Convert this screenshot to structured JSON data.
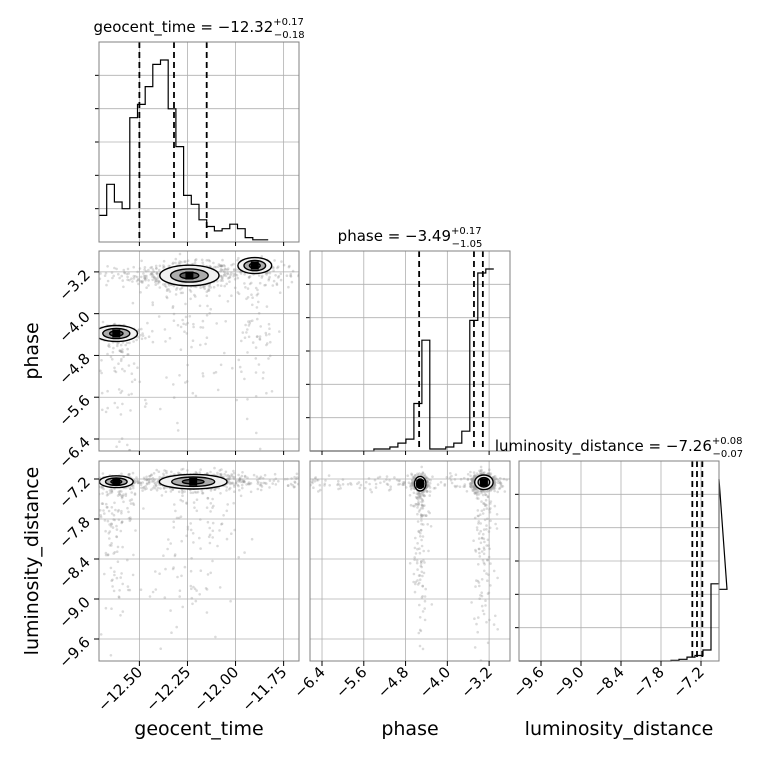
{
  "chart_data": {
    "type": "corner",
    "parameters": [
      "geocent_time",
      "phase",
      "luminosity_distance"
    ],
    "axis_labels": {
      "geocent_time": "geocent_time",
      "phase": "phase",
      "luminosity_distance": "luminosity_distance"
    },
    "titles": [
      {
        "param": "geocent_time",
        "name": "geocent_time",
        "median": "−12.32",
        "plus": "+0.17",
        "minus": "−0.18"
      },
      {
        "param": "phase",
        "name": "phase",
        "median": "−3.49",
        "plus": "+0.17",
        "minus": "−1.05"
      },
      {
        "param": "luminosity_distance",
        "name": "luminosity_distance",
        "median": "−7.26",
        "plus": "+0.08",
        "minus": "−0.07"
      }
    ],
    "ranges": {
      "geocent_time": [
        -12.71,
        -11.67
      ],
      "phase": [
        -6.63,
        -2.8
      ],
      "luminosity_distance": [
        -9.93,
        -6.93
      ]
    },
    "ticks": {
      "geocent_time": {
        "values": [
          -12.5,
          -12.25,
          -12.0,
          -11.75
        ],
        "labels": [
          "−12.50",
          "−12.25",
          "−12.00",
          "−11.75"
        ]
      },
      "phase": {
        "values": [
          -6.4,
          -5.6,
          -4.8,
          -4.0,
          -3.2
        ],
        "labels": [
          "−6.4",
          "−5.6",
          "−4.8",
          "−4.0",
          "−3.2"
        ]
      },
      "luminosity_distance": {
        "values": [
          -9.6,
          -9.0,
          -8.4,
          -7.8,
          -7.2
        ],
        "labels": [
          "−9.6",
          "−9.0",
          "−8.4",
          "−7.8",
          "−7.2"
        ]
      }
    },
    "quantiles": {
      "geocent_time": [
        -12.5,
        -12.32,
        -12.15
      ],
      "phase": [
        -4.54,
        -3.49,
        -3.32
      ],
      "luminosity_distance": [
        -7.33,
        -7.26,
        -7.18
      ]
    },
    "histograms": {
      "geocent_time": {
        "edges_start": -12.71,
        "bin_width": 0.04,
        "counts": [
          12,
          26,
          18,
          15,
          56,
          62,
          70,
          80,
          82,
          60,
          43,
          21,
          17,
          10,
          7,
          5,
          6,
          8,
          6,
          2,
          1,
          1
        ]
      },
      "phase": {
        "edges_start": -6.63,
        "bin_width": 0.153,
        "counts": [
          0,
          0,
          0,
          0,
          0,
          0,
          0,
          0,
          0.5,
          0.5,
          1,
          2,
          3,
          12,
          28,
          0.5,
          0.5,
          1,
          2,
          5,
          33,
          45,
          46
        ]
      },
      "luminosity_distance": {
        "edges_start": -9.93,
        "bin_width": 0.12,
        "counts": [
          0,
          0,
          0,
          0,
          0,
          0,
          0,
          0,
          0,
          0,
          0,
          0,
          0,
          0,
          0,
          0,
          0,
          0,
          0,
          0.1,
          0.3,
          0.7,
          1,
          2,
          14,
          33,
          13
        ]
      }
    },
    "pair_plots": [
      {
        "x": "geocent_time",
        "y": "phase",
        "modes": [
          {
            "x": -12.24,
            "y": -3.27,
            "sx": 0.07,
            "sy": 0.09,
            "weight": 0.55
          },
          {
            "x": -12.62,
            "y": -4.38,
            "sx": 0.05,
            "sy": 0.07,
            "weight": 0.2
          },
          {
            "x": -11.9,
            "y": -3.08,
            "sx": 0.04,
            "sy": 0.07,
            "weight": 0.08
          }
        ]
      },
      {
        "x": "geocent_time",
        "y": "luminosity_distance",
        "modes": [
          {
            "x": -12.22,
            "y": -7.24,
            "sx": 0.08,
            "sy": 0.05,
            "weight": 0.6
          },
          {
            "x": -12.62,
            "y": -7.24,
            "sx": 0.04,
            "sy": 0.04,
            "weight": 0.15
          }
        ]
      },
      {
        "x": "phase",
        "y": "luminosity_distance",
        "modes": [
          {
            "x": -4.52,
            "y": -7.27,
            "sx": 0.05,
            "sy": 0.05,
            "weight": 0.35
          },
          {
            "x": -3.3,
            "y": -7.25,
            "sx": 0.08,
            "sy": 0.05,
            "weight": 0.45
          }
        ]
      }
    ],
    "grid": true,
    "colors": {
      "line": "#000000",
      "grid": "#b0b0b0",
      "samples": "#999999",
      "contour_fill_inner": "#5a5a5a",
      "contour_fill_mid": "#a8a8a8",
      "contour_fill_outer": "#f2f2f2"
    }
  }
}
